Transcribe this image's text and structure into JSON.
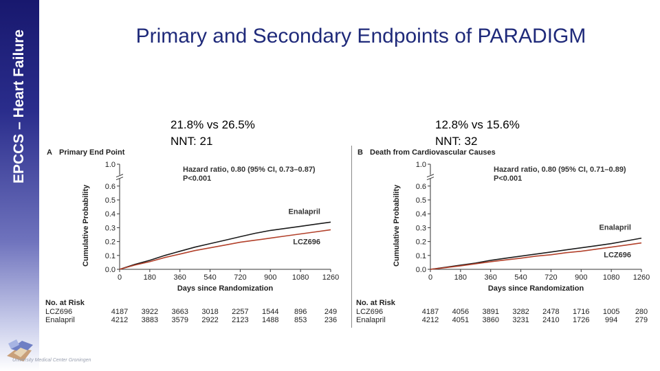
{
  "sidebar": {
    "text": "EPCCS – Heart Failure"
  },
  "logo": {
    "caption": "University Medical Center Groningen"
  },
  "title": "Primary and Secondary Endpoints  of PARADIGM",
  "stats": [
    {
      "line1": "21.8% vs 26.5%",
      "line2": "NNT:  21"
    },
    {
      "line1": "12.8% vs 15.6%",
      "line2": "NNT:  32"
    }
  ],
  "chart_data": [
    {
      "type": "line",
      "panel_letter": "A",
      "title": "Primary End Point",
      "xlabel": "Days since Randomization",
      "ylabel": "Cumulative Probability",
      "hazard_line1": "Hazard ratio, 0.80 (95% CI, 0.73–0.87)",
      "hazard_line2": "P<0.001",
      "xlim": [
        0,
        1260
      ],
      "ylim": [
        0,
        0.65
      ],
      "xticks": [
        "0",
        "180",
        "360",
        "540",
        "720",
        "900",
        "1080",
        "1260"
      ],
      "yticks": [
        "0.0",
        "0.1",
        "0.2",
        "0.3",
        "0.4",
        "0.5",
        "0.6"
      ],
      "ytop_label": "1.0",
      "x": [
        0,
        90,
        180,
        270,
        360,
        450,
        540,
        630,
        720,
        810,
        900,
        990,
        1080,
        1170,
        1260
      ],
      "series": [
        {
          "name": "Enalapril",
          "color": "#1a1a1a",
          "values": [
            0,
            0.035,
            0.065,
            0.1,
            0.13,
            0.16,
            0.185,
            0.21,
            0.235,
            0.26,
            0.28,
            0.295,
            0.31,
            0.325,
            0.34
          ]
        },
        {
          "name": "LCZ696",
          "color": "#b2402a",
          "values": [
            0,
            0.03,
            0.055,
            0.085,
            0.11,
            0.135,
            0.155,
            0.175,
            0.195,
            0.21,
            0.225,
            0.24,
            0.255,
            0.27,
            0.285
          ]
        }
      ],
      "risk_table": {
        "header": "No. at Risk",
        "rows": [
          {
            "label": "LCZ696",
            "values": [
              "4187",
              "3922",
              "3663",
              "3018",
              "2257",
              "1544",
              "896",
              "249"
            ]
          },
          {
            "label": "Enalapril",
            "values": [
              "4212",
              "3883",
              "3579",
              "2922",
              "2123",
              "1488",
              "853",
              "236"
            ]
          }
        ]
      }
    },
    {
      "type": "line",
      "panel_letter": "B",
      "title": "Death from Cardiovascular Causes",
      "xlabel": "Days since Randomization",
      "ylabel": "Cumulative Probability",
      "hazard_line1": "Hazard ratio, 0.80 (95% CI, 0.71–0.89)",
      "hazard_line2": "P<0.001",
      "xlim": [
        0,
        1260
      ],
      "ylim": [
        0,
        0.65
      ],
      "xticks": [
        "0",
        "180",
        "360",
        "540",
        "720",
        "900",
        "1080",
        "1260"
      ],
      "yticks": [
        "0.0",
        "0.1",
        "0.2",
        "0.3",
        "0.4",
        "0.5",
        "0.6"
      ],
      "ytop_label": "1.0",
      "x": [
        0,
        90,
        180,
        270,
        360,
        450,
        540,
        630,
        720,
        810,
        900,
        990,
        1080,
        1170,
        1260
      ],
      "series": [
        {
          "name": "Enalapril",
          "color": "#1a1a1a",
          "values": [
            0,
            0.015,
            0.03,
            0.045,
            0.065,
            0.08,
            0.095,
            0.11,
            0.125,
            0.14,
            0.155,
            0.17,
            0.185,
            0.205,
            0.225
          ]
        },
        {
          "name": "LCZ696",
          "color": "#b2402a",
          "values": [
            0,
            0.012,
            0.025,
            0.04,
            0.055,
            0.068,
            0.08,
            0.095,
            0.105,
            0.12,
            0.13,
            0.145,
            0.16,
            0.175,
            0.19
          ]
        }
      ],
      "risk_table": {
        "header": "No. at Risk",
        "rows": [
          {
            "label": "LCZ696",
            "values": [
              "4187",
              "4056",
              "3891",
              "3282",
              "2478",
              "1716",
              "1005",
              "280"
            ]
          },
          {
            "label": "Enalapril",
            "values": [
              "4212",
              "4051",
              "3860",
              "3231",
              "2410",
              "1726",
              "994",
              "279"
            ]
          }
        ]
      }
    }
  ]
}
